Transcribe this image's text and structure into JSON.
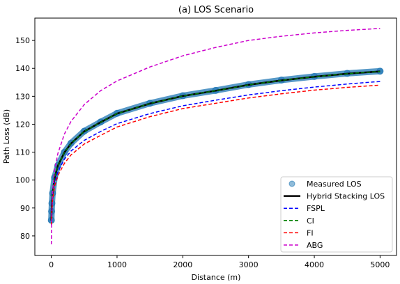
{
  "chart_data": {
    "type": "line",
    "title": "(a) LOS Scenario",
    "xlabel": "Distance (m)",
    "ylabel": "Path Loss (dB)",
    "xlim": [
      -250,
      5250
    ],
    "ylim": [
      73,
      158
    ],
    "xticks": [
      0,
      1000,
      2000,
      3000,
      4000,
      5000
    ],
    "yticks": [
      80,
      90,
      100,
      110,
      120,
      130,
      140,
      150
    ],
    "grid": false,
    "legend_position": "lower-right",
    "x": [
      1,
      5,
      10,
      20,
      50,
      100,
      200,
      300,
      500,
      750,
      1000,
      1500,
      2000,
      2500,
      3000,
      3500,
      4000,
      4500,
      5000
    ],
    "series": [
      {
        "name": "Measured LOS",
        "style": "scatter",
        "color": "#1f77b4",
        "values": [
          85.6,
          88.8,
          91.7,
          95.3,
          100.9,
          105.2,
          110.0,
          113.2,
          117.5,
          120.8,
          123.9,
          127.5,
          130.2,
          132.1,
          134.2,
          135.8,
          137.1,
          138.2,
          139.0
        ]
      },
      {
        "name": "Hybrid Stacking LOS",
        "style": "solid",
        "color": "#000000",
        "values": [
          85.5,
          88.7,
          91.6,
          95.2,
          100.8,
          105.1,
          109.9,
          113.1,
          117.4,
          120.7,
          123.8,
          127.4,
          130.1,
          132.0,
          134.1,
          135.7,
          137.0,
          138.1,
          138.9
        ]
      },
      {
        "name": "FSPL",
        "style": "dashed",
        "color": "#0000ff",
        "values": [
          86.0,
          88.5,
          91.0,
          94.0,
          99.0,
          103.0,
          107.5,
          110.4,
          114.2,
          117.4,
          120.2,
          123.8,
          126.6,
          128.6,
          130.5,
          132.0,
          133.3,
          134.4,
          135.3
        ]
      },
      {
        "name": "CI",
        "style": "dashed",
        "color": "#008000",
        "values": [
          85.5,
          88.7,
          91.6,
          95.2,
          100.8,
          105.1,
          109.9,
          113.1,
          117.4,
          120.7,
          123.8,
          127.4,
          130.1,
          132.0,
          134.1,
          135.7,
          137.0,
          138.1,
          138.9
        ]
      },
      {
        "name": "FI",
        "style": "dashed",
        "color": "#ff0000",
        "values": [
          84.0,
          87.0,
          89.6,
          92.8,
          97.8,
          101.6,
          106.0,
          109.0,
          112.9,
          116.0,
          119.0,
          122.7,
          125.6,
          127.5,
          129.4,
          130.9,
          132.2,
          133.2,
          134.0
        ]
      },
      {
        "name": "ABG",
        "style": "dashed",
        "color": "#cc00cc",
        "values": [
          77.0,
          85.0,
          90.0,
          95.5,
          103.5,
          109.5,
          116.5,
          121.0,
          127.0,
          132.0,
          135.5,
          140.5,
          144.5,
          147.5,
          150.0,
          151.5,
          152.7,
          153.6,
          154.3
        ]
      }
    ]
  }
}
